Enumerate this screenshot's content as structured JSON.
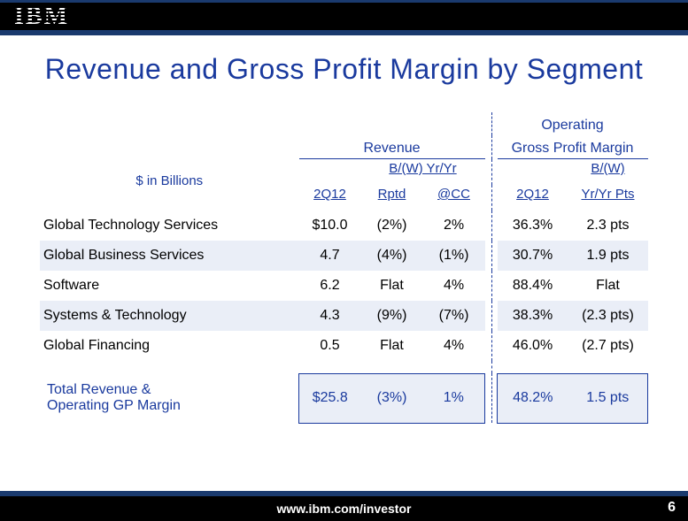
{
  "brand": "IBM",
  "title": "Revenue and Gross Profit Margin by Segment",
  "title_color": "#1a3a9e",
  "units_label": "$ in Billions",
  "group_headers": {
    "revenue": "Revenue",
    "gpm": "Operating\nGross Profit Margin"
  },
  "sub_headers": {
    "rev_q": "2Q12",
    "rev_bw_top": "B/(W) Yr/Yr",
    "rev_rptd": "Rptd",
    "rev_cc": "@CC",
    "gpm_q": "2Q12",
    "gpm_bw_top": "B/(W)",
    "gpm_bw_bot": "Yr/Yr Pts"
  },
  "rows": [
    {
      "label": "Global Technology Services",
      "rev_q": "$10.0",
      "rev_rptd": "(2%)",
      "rev_cc": "2%",
      "gpm_q": "36.3%",
      "gpm_pts": "2.3 pts",
      "shade": false
    },
    {
      "label": "Global Business Services",
      "rev_q": "4.7",
      "rev_rptd": "(4%)",
      "rev_cc": "(1%)",
      "gpm_q": "30.7%",
      "gpm_pts": "1.9 pts",
      "shade": true
    },
    {
      "label": "Software",
      "rev_q": "6.2",
      "rev_rptd": "Flat",
      "rev_cc": "4%",
      "gpm_q": "88.4%",
      "gpm_pts": "Flat",
      "shade": false
    },
    {
      "label": "Systems & Technology",
      "rev_q": "4.3",
      "rev_rptd": "(9%)",
      "rev_cc": "(7%)",
      "gpm_q": "38.3%",
      "gpm_pts": "(2.3 pts)",
      "shade": true
    },
    {
      "label": "Global Financing",
      "rev_q": "0.5",
      "rev_rptd": "Flat",
      "rev_cc": "4%",
      "gpm_q": "46.0%",
      "gpm_pts": "(2.7 pts)",
      "shade": false
    }
  ],
  "total": {
    "label": "Total Revenue &\nOperating GP Margin",
    "rev_q": "$25.8",
    "rev_rptd": "(3%)",
    "rev_cc": "1%",
    "gpm_q": "48.2%",
    "gpm_pts": "1.5 pts"
  },
  "footer_url": "www.ibm.com/investor",
  "page_number": "6",
  "colors": {
    "accent": "#1a3a9e",
    "shade_bg": "#eaeef7",
    "bar_border": "#1a3a6e"
  }
}
